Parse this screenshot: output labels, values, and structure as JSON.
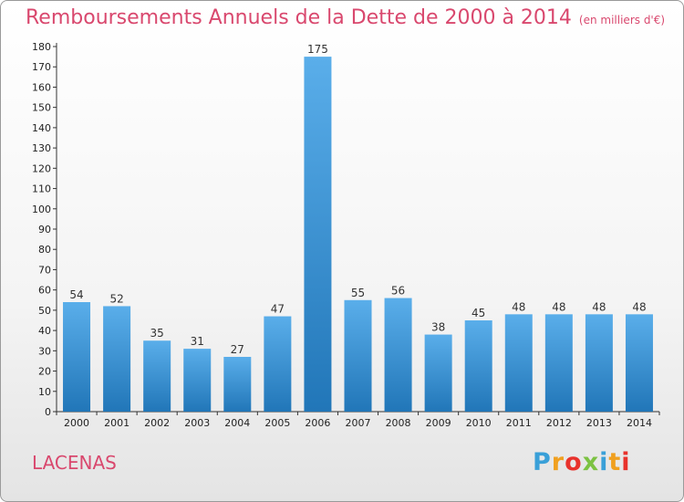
{
  "title": "Remboursements Annuels de la Dette de 2000 à 2014",
  "unit_note": "(en milliers d'€)",
  "commune": "LACENAS",
  "logo_text": "Proxiti",
  "colors": {
    "title": "#d9486e",
    "bar_top": "#5aaeea",
    "bar_bottom": "#2176b8",
    "logo": [
      "#3aa0d8",
      "#f0a020",
      "#e8322c",
      "#7cc242",
      "#3aa0d8",
      "#f0a020",
      "#e8322c"
    ]
  },
  "chart_data": {
    "type": "bar",
    "title": "Remboursements Annuels de la Dette de 2000 à 2014",
    "subtitle": "(en milliers d'€)",
    "xlabel": "",
    "ylabel": "",
    "categories": [
      "2000",
      "2001",
      "2002",
      "2003",
      "2004",
      "2005",
      "2006",
      "2007",
      "2008",
      "2009",
      "2010",
      "2011",
      "2012",
      "2013",
      "2014"
    ],
    "values": [
      54,
      52,
      35,
      31,
      27,
      47,
      175,
      55,
      56,
      38,
      45,
      48,
      48,
      48,
      48
    ],
    "ylim": [
      0,
      180
    ],
    "ytick_step": 10,
    "grid": false,
    "data_labels": true
  }
}
